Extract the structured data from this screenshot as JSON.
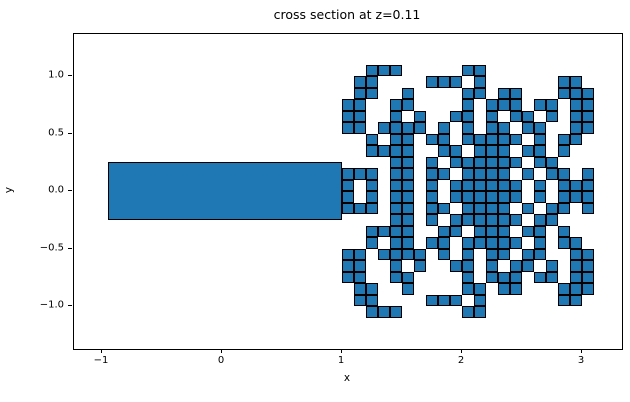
{
  "title": "cross section at z=0.11",
  "axes": {
    "xlabel": "x",
    "ylabel": "y",
    "xlim": [
      -1.2333,
      3.3333
    ],
    "ylim": [
      -1.3739,
      1.3652
    ],
    "xticks": [
      {
        "value": -1,
        "label": "−1"
      },
      {
        "value": 0,
        "label": "0"
      },
      {
        "value": 1,
        "label": "1"
      },
      {
        "value": 2,
        "label": "2"
      },
      {
        "value": 3,
        "label": "3"
      }
    ],
    "yticks": [
      {
        "value": 1.0,
        "label": "1.0"
      },
      {
        "value": 0.5,
        "label": "0.5"
      },
      {
        "value": 0.0,
        "label": "0.0"
      },
      {
        "value": -0.5,
        "label": "−0.5"
      },
      {
        "value": -1.0,
        "label": "−1.0"
      }
    ]
  },
  "chart_data": {
    "type": "heatmap",
    "title": "cross section at z=0.11",
    "xlabel": "x",
    "ylabel": "y",
    "grid": false,
    "legend": "none",
    "fill_color": "#1f77b4",
    "edge_color": "#000000",
    "rectangle": {
      "comment": "large solid bar (body cross-section)",
      "x_min": -0.95,
      "x_max": 1.0,
      "y_min": -0.25,
      "y_max": 0.25
    },
    "cells": {
      "comment": "octree-style mesh cells, each 0.1 x 0.1 in data units; rows top-to-bottom starting at y_top, cols left-to-right starting at x_left; '1' = filled square",
      "x_left": 1.0,
      "y_top": 1.1,
      "cell_size": 0.1,
      "n_cols": 21,
      "n_rows": 22,
      "rows": [
        "001110000011000000000",
        "011000011101000000110",
        "011001000011011000111",
        "110011000010111011011",
        "110010100110101101011",
        "110111101010110110011",
        "001011011011111010110",
        "001111001101110110100",
        "000011010111111011000",
        "111011011011110101101",
        "101011010111111010111",
        "101011010111111010111",
        "111011011011110101101",
        "000011010111111011000",
        "001111001101110110100",
        "001011011011111010110",
        "110111101010110110011",
        "110010100110101101011",
        "110011000010111011011",
        "011001000011011000111",
        "011000011101000000110",
        "001110000011000000000"
      ]
    }
  }
}
